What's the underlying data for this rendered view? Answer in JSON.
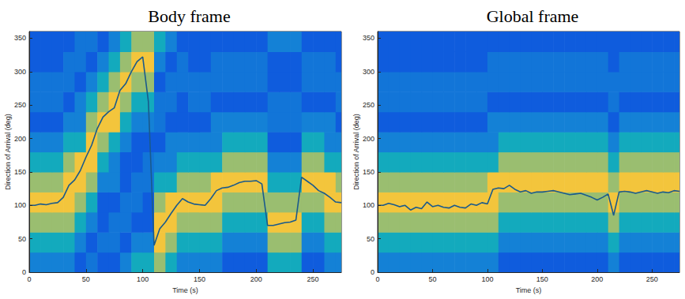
{
  "chart_data": [
    {
      "type": "heatmap",
      "title": "Body frame",
      "x_label": "Time (s)",
      "y_label": "Direction of Arrival (deg)",
      "xlim": [
        0,
        275
      ],
      "ylim": [
        0,
        360
      ],
      "xticks": [
        0,
        50,
        100,
        150,
        200,
        250
      ],
      "yticks": [
        0,
        50,
        100,
        150,
        200,
        250,
        300,
        350
      ],
      "grid": false,
      "clim": [
        0,
        1
      ],
      "cells": {
        "x_edges": [
          0,
          10,
          20,
          30,
          40,
          50,
          60,
          70,
          80,
          90,
          100,
          110,
          120,
          130,
          140,
          150,
          160,
          170,
          180,
          190,
          200,
          210,
          220,
          230,
          240,
          250,
          260,
          270,
          275
        ],
        "y_edges": [
          0,
          30,
          60,
          90,
          120,
          150,
          180,
          210,
          240,
          270,
          300,
          330,
          360
        ],
        "values": [
          [
            0.3,
            0.3,
            0.3,
            0.3,
            0.15,
            0.25,
            0.15,
            0.15,
            0.3,
            0.5,
            0.5,
            0.75,
            0.5,
            0.3,
            0.3,
            0.3,
            0.3,
            0.15,
            0.15,
            0.15,
            0.15,
            0.5,
            0.5,
            0.5,
            0.15,
            0.15,
            0.3,
            0.3
          ],
          [
            0.5,
            0.5,
            0.5,
            0.5,
            0.3,
            0.15,
            0.25,
            0.25,
            0.15,
            0.3,
            0.3,
            0.9,
            0.75,
            0.5,
            0.5,
            0.5,
            0.5,
            0.3,
            0.3,
            0.3,
            0.3,
            0.75,
            0.75,
            0.75,
            0.3,
            0.3,
            0.5,
            0.5
          ],
          [
            0.75,
            0.75,
            0.75,
            0.75,
            0.5,
            0.3,
            0.15,
            0.25,
            0.25,
            0.15,
            0.15,
            0.9,
            0.9,
            0.75,
            0.75,
            0.75,
            0.75,
            0.5,
            0.5,
            0.5,
            0.5,
            0.9,
            0.9,
            0.9,
            0.5,
            0.5,
            0.75,
            0.75
          ],
          [
            0.9,
            0.9,
            0.9,
            0.9,
            0.75,
            0.5,
            0.15,
            0.15,
            0.25,
            0.25,
            0.15,
            0.75,
            0.9,
            0.9,
            0.9,
            0.9,
            0.9,
            0.75,
            0.75,
            0.75,
            0.75,
            0.75,
            0.75,
            0.75,
            0.75,
            0.75,
            0.9,
            0.9
          ],
          [
            0.75,
            0.75,
            0.75,
            0.9,
            0.9,
            0.75,
            0.3,
            0.3,
            0.15,
            0.25,
            0.25,
            0.5,
            0.5,
            0.75,
            0.75,
            0.75,
            0.9,
            0.9,
            0.9,
            0.9,
            0.9,
            0.5,
            0.5,
            0.5,
            0.9,
            0.9,
            0.9,
            0.75
          ],
          [
            0.5,
            0.5,
            0.5,
            0.75,
            0.9,
            0.9,
            0.5,
            0.3,
            0.15,
            0.15,
            0.25,
            0.3,
            0.3,
            0.5,
            0.5,
            0.5,
            0.5,
            0.75,
            0.75,
            0.75,
            0.75,
            0.3,
            0.3,
            0.3,
            0.75,
            0.75,
            0.5,
            0.5
          ],
          [
            0.3,
            0.3,
            0.3,
            0.5,
            0.5,
            0.9,
            0.75,
            0.5,
            0.3,
            0.15,
            0.15,
            0.15,
            0.3,
            0.3,
            0.3,
            0.3,
            0.3,
            0.5,
            0.5,
            0.5,
            0.5,
            0.15,
            0.15,
            0.15,
            0.5,
            0.5,
            0.3,
            0.3
          ],
          [
            0.15,
            0.15,
            0.15,
            0.3,
            0.3,
            0.75,
            0.9,
            0.9,
            0.5,
            0.3,
            0.3,
            0.25,
            0.15,
            0.15,
            0.15,
            0.15,
            0.3,
            0.3,
            0.3,
            0.3,
            0.3,
            0.25,
            0.25,
            0.25,
            0.3,
            0.3,
            0.3,
            0.15
          ],
          [
            0.25,
            0.25,
            0.25,
            0.15,
            0.3,
            0.5,
            0.75,
            0.9,
            0.75,
            0.5,
            0.5,
            0.25,
            0.25,
            0.15,
            0.25,
            0.25,
            0.15,
            0.15,
            0.15,
            0.15,
            0.15,
            0.25,
            0.25,
            0.25,
            0.15,
            0.15,
            0.15,
            0.25
          ],
          [
            0.25,
            0.25,
            0.25,
            0.25,
            0.15,
            0.3,
            0.5,
            0.75,
            0.9,
            0.75,
            0.75,
            0.15,
            0.25,
            0.25,
            0.25,
            0.25,
            0.25,
            0.25,
            0.25,
            0.25,
            0.25,
            0.15,
            0.15,
            0.15,
            0.25,
            0.25,
            0.25,
            0.25
          ],
          [
            0.15,
            0.15,
            0.15,
            0.25,
            0.25,
            0.15,
            0.3,
            0.5,
            0.75,
            0.9,
            0.9,
            0.3,
            0.15,
            0.25,
            0.15,
            0.15,
            0.25,
            0.25,
            0.25,
            0.25,
            0.25,
            0.15,
            0.15,
            0.15,
            0.25,
            0.25,
            0.25,
            0.15
          ],
          [
            0.15,
            0.15,
            0.15,
            0.15,
            0.25,
            0.25,
            0.15,
            0.3,
            0.5,
            0.75,
            0.75,
            0.5,
            0.3,
            0.15,
            0.15,
            0.15,
            0.15,
            0.15,
            0.15,
            0.15,
            0.15,
            0.3,
            0.3,
            0.3,
            0.15,
            0.15,
            0.15,
            0.15
          ]
        ]
      },
      "series": [
        {
          "type": "line",
          "color": "#1a5a8c",
          "x": [
            0,
            5,
            10,
            15,
            20,
            25,
            30,
            35,
            40,
            45,
            50,
            55,
            60,
            65,
            70,
            75,
            80,
            85,
            90,
            95,
            100,
            105,
            110,
            115,
            120,
            125,
            130,
            135,
            140,
            145,
            150,
            155,
            160,
            165,
            170,
            175,
            180,
            185,
            190,
            195,
            200,
            205,
            210,
            215,
            220,
            225,
            230,
            235,
            240,
            245,
            250,
            255,
            260,
            265,
            270,
            275
          ],
          "values": [
            100,
            100,
            102,
            101,
            103,
            104,
            112,
            130,
            138,
            152,
            172,
            190,
            215,
            232,
            240,
            246,
            272,
            282,
            300,
            315,
            322,
            255,
            40,
            65,
            75,
            88,
            100,
            110,
            105,
            102,
            101,
            100,
            110,
            122,
            126,
            127,
            130,
            134,
            136,
            136,
            137,
            132,
            70,
            70,
            72,
            74,
            75,
            78,
            142,
            136,
            130,
            122,
            118,
            112,
            105,
            104
          ]
        }
      ]
    },
    {
      "type": "heatmap",
      "title": "Global frame",
      "x_label": "Time (s)",
      "y_label": "Direction of Arrival (deg)",
      "xlim": [
        0,
        275
      ],
      "ylim": [
        0,
        360
      ],
      "xticks": [
        0,
        50,
        100,
        150,
        200,
        250
      ],
      "yticks": [
        0,
        50,
        100,
        150,
        200,
        250,
        300,
        350
      ],
      "grid": false,
      "clim": [
        0,
        1
      ],
      "cells": {
        "x_edges": [
          0,
          10,
          20,
          30,
          40,
          50,
          60,
          70,
          80,
          90,
          100,
          110,
          120,
          130,
          140,
          150,
          160,
          170,
          180,
          190,
          200,
          210,
          220,
          230,
          240,
          250,
          260,
          270,
          275
        ],
        "y_edges": [
          0,
          30,
          60,
          90,
          120,
          150,
          180,
          210,
          240,
          270,
          300,
          330,
          360
        ],
        "values": [
          [
            0.3,
            0.3,
            0.3,
            0.3,
            0.3,
            0.3,
            0.3,
            0.3,
            0.3,
            0.3,
            0.3,
            0.15,
            0.15,
            0.15,
            0.15,
            0.15,
            0.15,
            0.15,
            0.15,
            0.15,
            0.15,
            0.3,
            0.15,
            0.15,
            0.15,
            0.15,
            0.15,
            0.15
          ],
          [
            0.5,
            0.5,
            0.5,
            0.5,
            0.5,
            0.5,
            0.5,
            0.5,
            0.5,
            0.5,
            0.5,
            0.3,
            0.3,
            0.3,
            0.3,
            0.3,
            0.3,
            0.3,
            0.3,
            0.3,
            0.3,
            0.5,
            0.3,
            0.3,
            0.3,
            0.3,
            0.3,
            0.3
          ],
          [
            0.75,
            0.75,
            0.75,
            0.75,
            0.75,
            0.75,
            0.75,
            0.75,
            0.75,
            0.75,
            0.75,
            0.5,
            0.5,
            0.5,
            0.5,
            0.5,
            0.5,
            0.5,
            0.5,
            0.5,
            0.5,
            0.75,
            0.5,
            0.5,
            0.5,
            0.5,
            0.5,
            0.5
          ],
          [
            0.9,
            0.9,
            0.9,
            0.9,
            0.9,
            0.9,
            0.9,
            0.9,
            0.9,
            0.9,
            0.9,
            0.75,
            0.75,
            0.75,
            0.75,
            0.75,
            0.75,
            0.75,
            0.75,
            0.75,
            0.75,
            0.9,
            0.75,
            0.75,
            0.75,
            0.75,
            0.75,
            0.75
          ],
          [
            0.75,
            0.75,
            0.75,
            0.75,
            0.75,
            0.75,
            0.75,
            0.75,
            0.75,
            0.75,
            0.9,
            0.9,
            0.9,
            0.9,
            0.9,
            0.9,
            0.9,
            0.9,
            0.9,
            0.9,
            0.9,
            0.75,
            0.9,
            0.9,
            0.9,
            0.9,
            0.9,
            0.9
          ],
          [
            0.5,
            0.5,
            0.5,
            0.5,
            0.5,
            0.5,
            0.5,
            0.5,
            0.5,
            0.5,
            0.5,
            0.75,
            0.75,
            0.75,
            0.75,
            0.75,
            0.75,
            0.75,
            0.75,
            0.75,
            0.75,
            0.5,
            0.75,
            0.75,
            0.75,
            0.75,
            0.75,
            0.75
          ],
          [
            0.3,
            0.3,
            0.3,
            0.3,
            0.3,
            0.3,
            0.3,
            0.3,
            0.3,
            0.3,
            0.3,
            0.5,
            0.5,
            0.5,
            0.5,
            0.5,
            0.5,
            0.5,
            0.5,
            0.5,
            0.5,
            0.3,
            0.5,
            0.5,
            0.5,
            0.5,
            0.5,
            0.5
          ],
          [
            0.15,
            0.15,
            0.15,
            0.15,
            0.15,
            0.15,
            0.15,
            0.15,
            0.15,
            0.15,
            0.3,
            0.3,
            0.3,
            0.3,
            0.3,
            0.3,
            0.3,
            0.3,
            0.3,
            0.3,
            0.3,
            0.15,
            0.3,
            0.3,
            0.3,
            0.3,
            0.3,
            0.3
          ],
          [
            0.25,
            0.25,
            0.25,
            0.25,
            0.25,
            0.25,
            0.25,
            0.25,
            0.25,
            0.25,
            0.15,
            0.15,
            0.15,
            0.15,
            0.15,
            0.15,
            0.15,
            0.15,
            0.15,
            0.15,
            0.15,
            0.25,
            0.15,
            0.15,
            0.15,
            0.15,
            0.15,
            0.15
          ],
          [
            0.25,
            0.25,
            0.25,
            0.25,
            0.25,
            0.25,
            0.25,
            0.25,
            0.25,
            0.25,
            0.25,
            0.25,
            0.25,
            0.25,
            0.25,
            0.25,
            0.25,
            0.25,
            0.25,
            0.25,
            0.25,
            0.25,
            0.25,
            0.25,
            0.25,
            0.25,
            0.25,
            0.25
          ],
          [
            0.15,
            0.15,
            0.15,
            0.15,
            0.15,
            0.15,
            0.15,
            0.15,
            0.15,
            0.15,
            0.25,
            0.25,
            0.25,
            0.25,
            0.25,
            0.25,
            0.25,
            0.25,
            0.25,
            0.25,
            0.25,
            0.15,
            0.25,
            0.25,
            0.25,
            0.25,
            0.25,
            0.25
          ],
          [
            0.15,
            0.15,
            0.15,
            0.15,
            0.15,
            0.15,
            0.15,
            0.15,
            0.15,
            0.15,
            0.15,
            0.15,
            0.15,
            0.15,
            0.15,
            0.15,
            0.15,
            0.15,
            0.15,
            0.15,
            0.15,
            0.15,
            0.15,
            0.15,
            0.15,
            0.15,
            0.15,
            0.15
          ]
        ]
      },
      "series": [
        {
          "type": "line",
          "color": "#1a5a8c",
          "x": [
            0,
            5,
            10,
            15,
            20,
            25,
            30,
            35,
            40,
            45,
            50,
            55,
            60,
            65,
            70,
            75,
            80,
            85,
            90,
            95,
            100,
            105,
            110,
            115,
            120,
            125,
            130,
            135,
            140,
            145,
            150,
            155,
            160,
            165,
            170,
            175,
            180,
            185,
            190,
            195,
            200,
            205,
            210,
            215,
            220,
            225,
            230,
            235,
            240,
            245,
            250,
            255,
            260,
            265,
            270,
            275
          ],
          "values": [
            100,
            100,
            103,
            101,
            98,
            100,
            93,
            97,
            95,
            105,
            98,
            100,
            97,
            96,
            100,
            97,
            96,
            102,
            100,
            104,
            102,
            124,
            126,
            125,
            130,
            124,
            120,
            122,
            118,
            120,
            120,
            121,
            122,
            120,
            118,
            116,
            117,
            118,
            115,
            112,
            108,
            112,
            117,
            85,
            120,
            121,
            120,
            118,
            120,
            122,
            120,
            118,
            120,
            119,
            122,
            121
          ]
        }
      ]
    }
  ]
}
